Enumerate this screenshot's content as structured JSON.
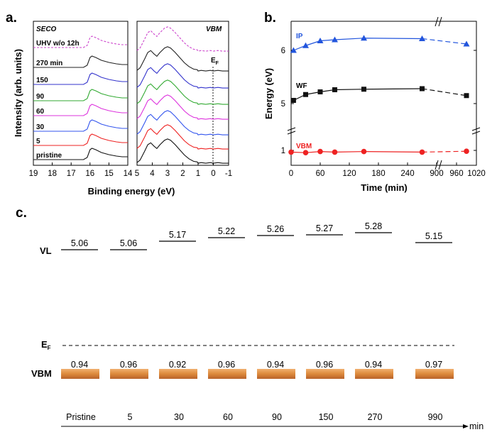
{
  "panel_labels": {
    "a": "a.",
    "b": "b.",
    "c": "c."
  },
  "chart_data": [
    {
      "id": "a",
      "type": "line",
      "subplots": [
        {
          "name": "SECO",
          "xlim": [
            19,
            14
          ],
          "xticks": [
            "19",
            "18",
            "17",
            "16",
            "15",
            "14"
          ]
        },
        {
          "name": "VBM",
          "xlim": [
            5,
            -1
          ],
          "xticks": [
            "5",
            "4",
            "3",
            "2",
            "1",
            "0",
            "-1"
          ],
          "fermi_label": "E",
          "fermi_sub": "F"
        }
      ],
      "xlabel": "Binding energy (eV)",
      "ylabel": "Intensity (arb. units)",
      "series": [
        {
          "name": "UHV w/o 12h",
          "color": "#cc44cc",
          "dashed": true
        },
        {
          "name": "270 min",
          "color": "#222222"
        },
        {
          "name": "150",
          "color": "#3333cc"
        },
        {
          "name": "90",
          "color": "#33aa33"
        },
        {
          "name": "60",
          "color": "#dd33dd"
        },
        {
          "name": "30",
          "color": "#3355ee"
        },
        {
          "name": "5",
          "color": "#ee2222"
        },
        {
          "name": "pristine",
          "color": "#111111"
        }
      ]
    },
    {
      "id": "b",
      "type": "line",
      "xlabel": "Time (min)",
      "ylabel": "Energy (eV)",
      "xticks": [
        "0",
        "60",
        "120",
        "180",
        "240",
        "900",
        "960",
        "1020"
      ],
      "yticks": [
        "1",
        "5",
        "6"
      ],
      "series": [
        {
          "name": "IP",
          "color": "#2255dd",
          "marker": "triangle",
          "x": [
            5,
            30,
            60,
            90,
            150,
            270,
            990
          ],
          "y": [
            6.0,
            6.09,
            6.18,
            6.2,
            6.23,
            6.22,
            6.12
          ]
        },
        {
          "name": "WF",
          "color": "#111111",
          "marker": "square",
          "x": [
            5,
            30,
            60,
            90,
            150,
            270,
            990
          ],
          "y": [
            5.06,
            5.17,
            5.22,
            5.26,
            5.27,
            5.28,
            5.15
          ]
        },
        {
          "name": "VBM",
          "color": "#ee2222",
          "marker": "circle",
          "x": [
            0,
            30,
            60,
            90,
            150,
            270,
            990
          ],
          "y": [
            0.94,
            0.92,
            0.96,
            0.94,
            0.96,
            0.94,
            0.97
          ]
        }
      ]
    },
    {
      "id": "c",
      "type": "diagram",
      "row_labels": {
        "vl": "VL",
        "ef": "E",
        "ef_sub": "F",
        "vbm": "VBM"
      },
      "x_unit": "min",
      "categories": [
        "Pristine",
        "5",
        "30",
        "60",
        "90",
        "150",
        "270",
        "990"
      ],
      "vl_values": [
        "5.06",
        "5.06",
        "5.17",
        "5.22",
        "5.26",
        "5.27",
        "5.28",
        "5.15"
      ],
      "vbm_values": [
        "0.94",
        "0.96",
        "0.92",
        "0.96",
        "0.94",
        "0.96",
        "0.94",
        "0.97"
      ]
    }
  ]
}
